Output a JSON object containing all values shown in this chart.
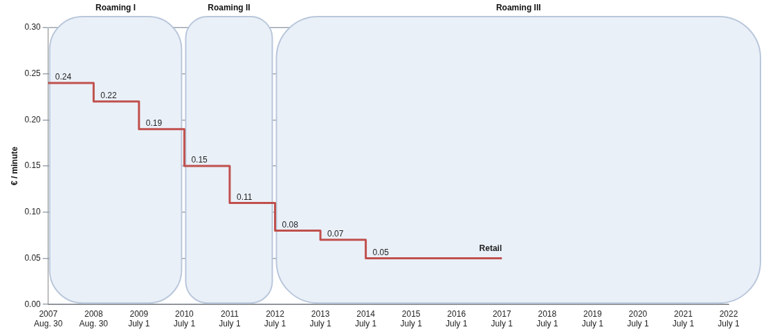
{
  "chart_data": {
    "type": "step",
    "ylabel": "€ / minute",
    "categories": [
      "2007\nAug. 30",
      "2008\nAug. 30",
      "2009\nJuly 1",
      "2010\nJuly 1",
      "2011\nJuly 1",
      "2012\nJuly 1",
      "2013\nJuly 1",
      "2014\nJuly 1",
      "2015\nJuly 1",
      "2016\nJuly 1",
      "2017\nJuly 1",
      "2018\nJuly 1",
      "2019\nJuly 1",
      "2020\nJuly 1",
      "2021\nJuly 1",
      "2022\nJuly 1"
    ],
    "series": [
      {
        "name": "Retail",
        "color": "#c0504d",
        "values": [
          0.24,
          0.22,
          0.19,
          0.15,
          0.11,
          0.08,
          0.07,
          0.05,
          0.05,
          0.05,
          0.05,
          null,
          null,
          null,
          null,
          null
        ],
        "value_labels": [
          "0.24",
          "0.22",
          "0.19",
          "0.15",
          "0.11",
          "0.08",
          "0.07",
          "0.05",
          null,
          null,
          null,
          null,
          null,
          null,
          null,
          null
        ]
      }
    ],
    "ylim": [
      0,
      0.3
    ],
    "yticks": [
      {
        "value": 0,
        "label": "0.00"
      },
      {
        "value": 0.05,
        "label": "0.05"
      },
      {
        "value": 0.1,
        "label": "0.10"
      },
      {
        "value": 0.15,
        "label": "0.15"
      },
      {
        "value": 0.2,
        "label": "0.20"
      },
      {
        "value": 0.25,
        "label": "0.25"
      },
      {
        "value": 0.3,
        "label": "0.30"
      }
    ],
    "bands": [
      {
        "axis": "x",
        "from": "2007\nAug. 30",
        "to": "2010\nJuly 1",
        "label": "Roaming I",
        "color": "#eaf0f8"
      },
      {
        "axis": "x",
        "from": "2010\nJuly 1",
        "to": "2012\nJuly 1",
        "label": "Roaming II",
        "color": "#eaf0f8"
      },
      {
        "axis": "x",
        "from": "2012\nJuly 1",
        "to": "2022\nJuly 1",
        "label": "Roaming III",
        "color": "#eaf0f8"
      }
    ],
    "grid": "y",
    "legend": false,
    "marker": "none",
    "line_style": "solid"
  }
}
